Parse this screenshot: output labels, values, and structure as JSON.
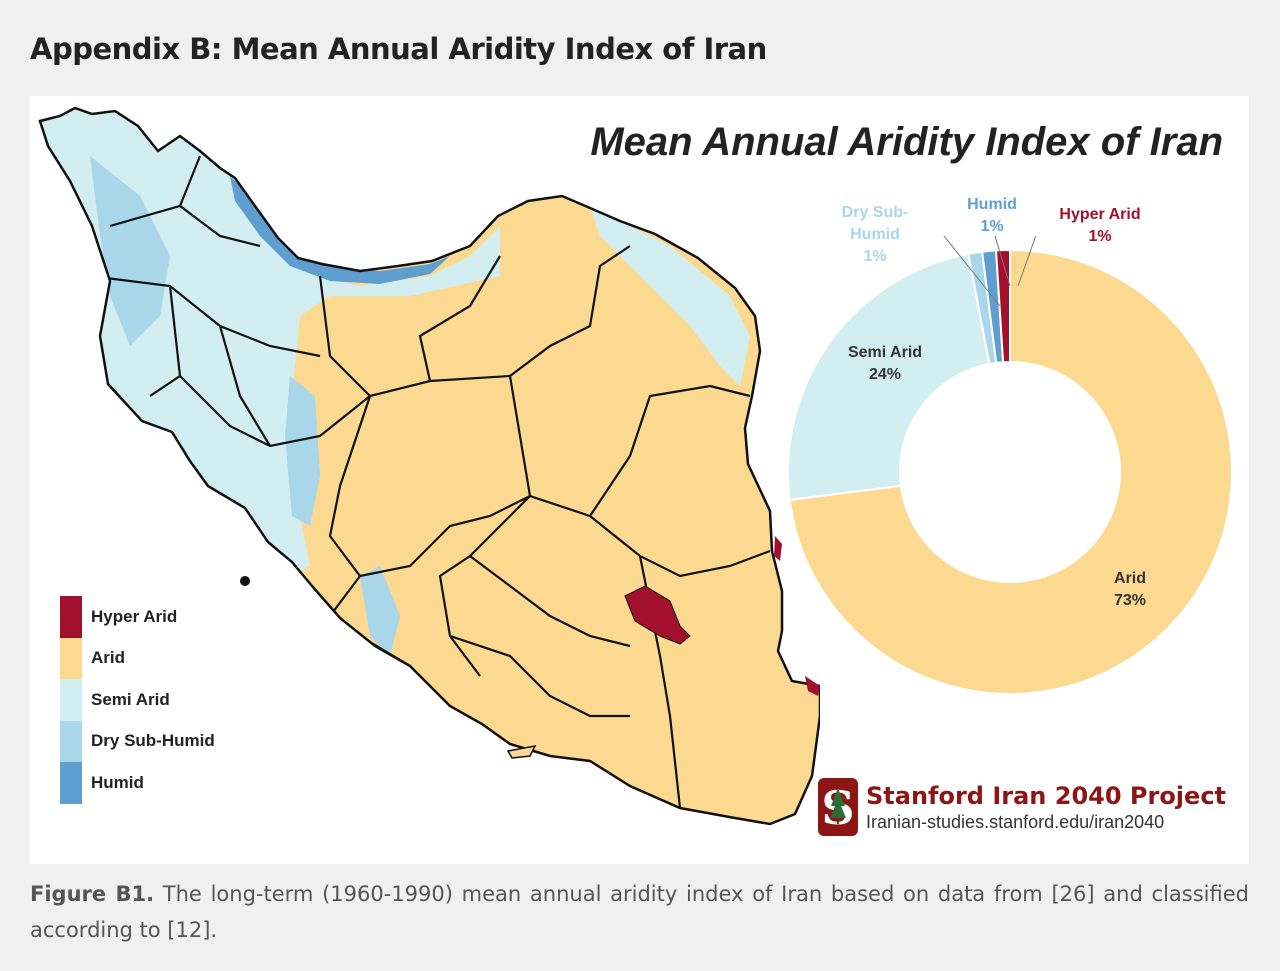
{
  "heading": "Appendix B: Mean Annual Aridity Index of Iran",
  "map": {
    "title": "Mean Annual Aridity Index of Iran"
  },
  "legend": [
    {
      "label": "Hyper Arid",
      "color": "#a3102e"
    },
    {
      "label": "Arid",
      "color": "#fcd990"
    },
    {
      "label": "Semi Arid",
      "color": "#d2eef0"
    },
    {
      "label": "Dry Sub-Humid",
      "color": "#a9d6e8"
    },
    {
      "label": "Humid",
      "color": "#5e9fd0"
    }
  ],
  "chart_data": {
    "type": "pie",
    "title": "",
    "slices": [
      {
        "label": "Arid",
        "value": 73,
        "display": "73%",
        "color": "#fcd990"
      },
      {
        "label": "Semi Arid",
        "value": 24,
        "display": "24%",
        "color": "#d2eef0"
      },
      {
        "label": "Dry Sub-Humid",
        "value": 1,
        "display": "1%",
        "color": "#a9d6e8"
      },
      {
        "label": "Humid",
        "value": 1,
        "display": "1%",
        "color": "#5e9fd0"
      },
      {
        "label": "Hyper Arid",
        "value": 1,
        "display": "1%",
        "color": "#a3102e"
      }
    ]
  },
  "donut_labels": {
    "dry_sub_humid_line1": "Dry Sub-",
    "dry_sub_humid_line2": "Humid",
    "dry_sub_humid_value": "1%",
    "humid_name": "Humid",
    "humid_value": "1%",
    "hyper_arid_name": "Hyper Arid",
    "hyper_arid_value": "1%",
    "semi_arid_name": "Semi Arid",
    "semi_arid_value": "24%",
    "arid_name": "Arid",
    "arid_value": "73%"
  },
  "branding": {
    "name": "Stanford Iran 2040 Project",
    "url": "Iranian-studies.stanford.edu/iran2040",
    "color": "#8c1515"
  },
  "caption": {
    "label": "Figure B1.",
    "text": " The long-term (1960-1990) mean annual aridity index of Iran based on data from [26] and classified according to [12]."
  }
}
